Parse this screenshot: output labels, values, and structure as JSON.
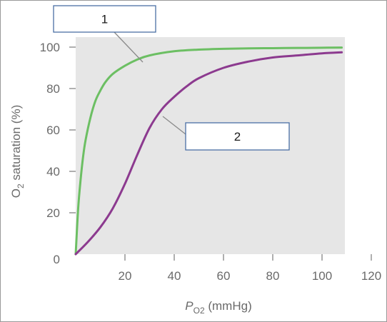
{
  "chart_data": {
    "type": "line",
    "xlabel_main": "P",
    "xlabel_sub": "O2",
    "xlabel_unit": "(mmHg)",
    "ylabel_main": "O",
    "ylabel_sub": "2",
    "ylabel_rest": " saturation (%)",
    "xlim": [
      0,
      120
    ],
    "ylim": [
      0,
      100
    ],
    "x_ticks": [
      20,
      40,
      60,
      80,
      100,
      120
    ],
    "y_ticks": [
      0,
      20,
      40,
      60,
      80,
      100
    ],
    "grid": false,
    "series": [
      {
        "label": "1",
        "color": "#6cbf63",
        "x": [
          0,
          1,
          2,
          3,
          4,
          6,
          8,
          10,
          12,
          15,
          20,
          25,
          30,
          40,
          50,
          60,
          70,
          80,
          90,
          100,
          108
        ],
        "y": [
          0,
          22,
          36,
          47,
          55,
          66,
          74,
          79,
          83,
          87,
          91,
          94,
          96,
          98,
          98.8,
          99.2,
          99.4,
          99.5,
          99.6,
          99.7,
          99.8
        ]
      },
      {
        "label": "2",
        "color": "#8c3a8f",
        "x": [
          0,
          5,
          10,
          15,
          20,
          25,
          30,
          35,
          40,
          45,
          50,
          60,
          70,
          80,
          90,
          100,
          108
        ],
        "y": [
          0,
          6,
          13,
          22,
          34,
          48,
          61,
          70,
          76,
          81,
          85,
          90,
          93,
          95,
          96,
          97,
          97.5
        ]
      }
    ]
  },
  "callouts": [
    {
      "text": "1"
    },
    {
      "text": "2"
    }
  ]
}
